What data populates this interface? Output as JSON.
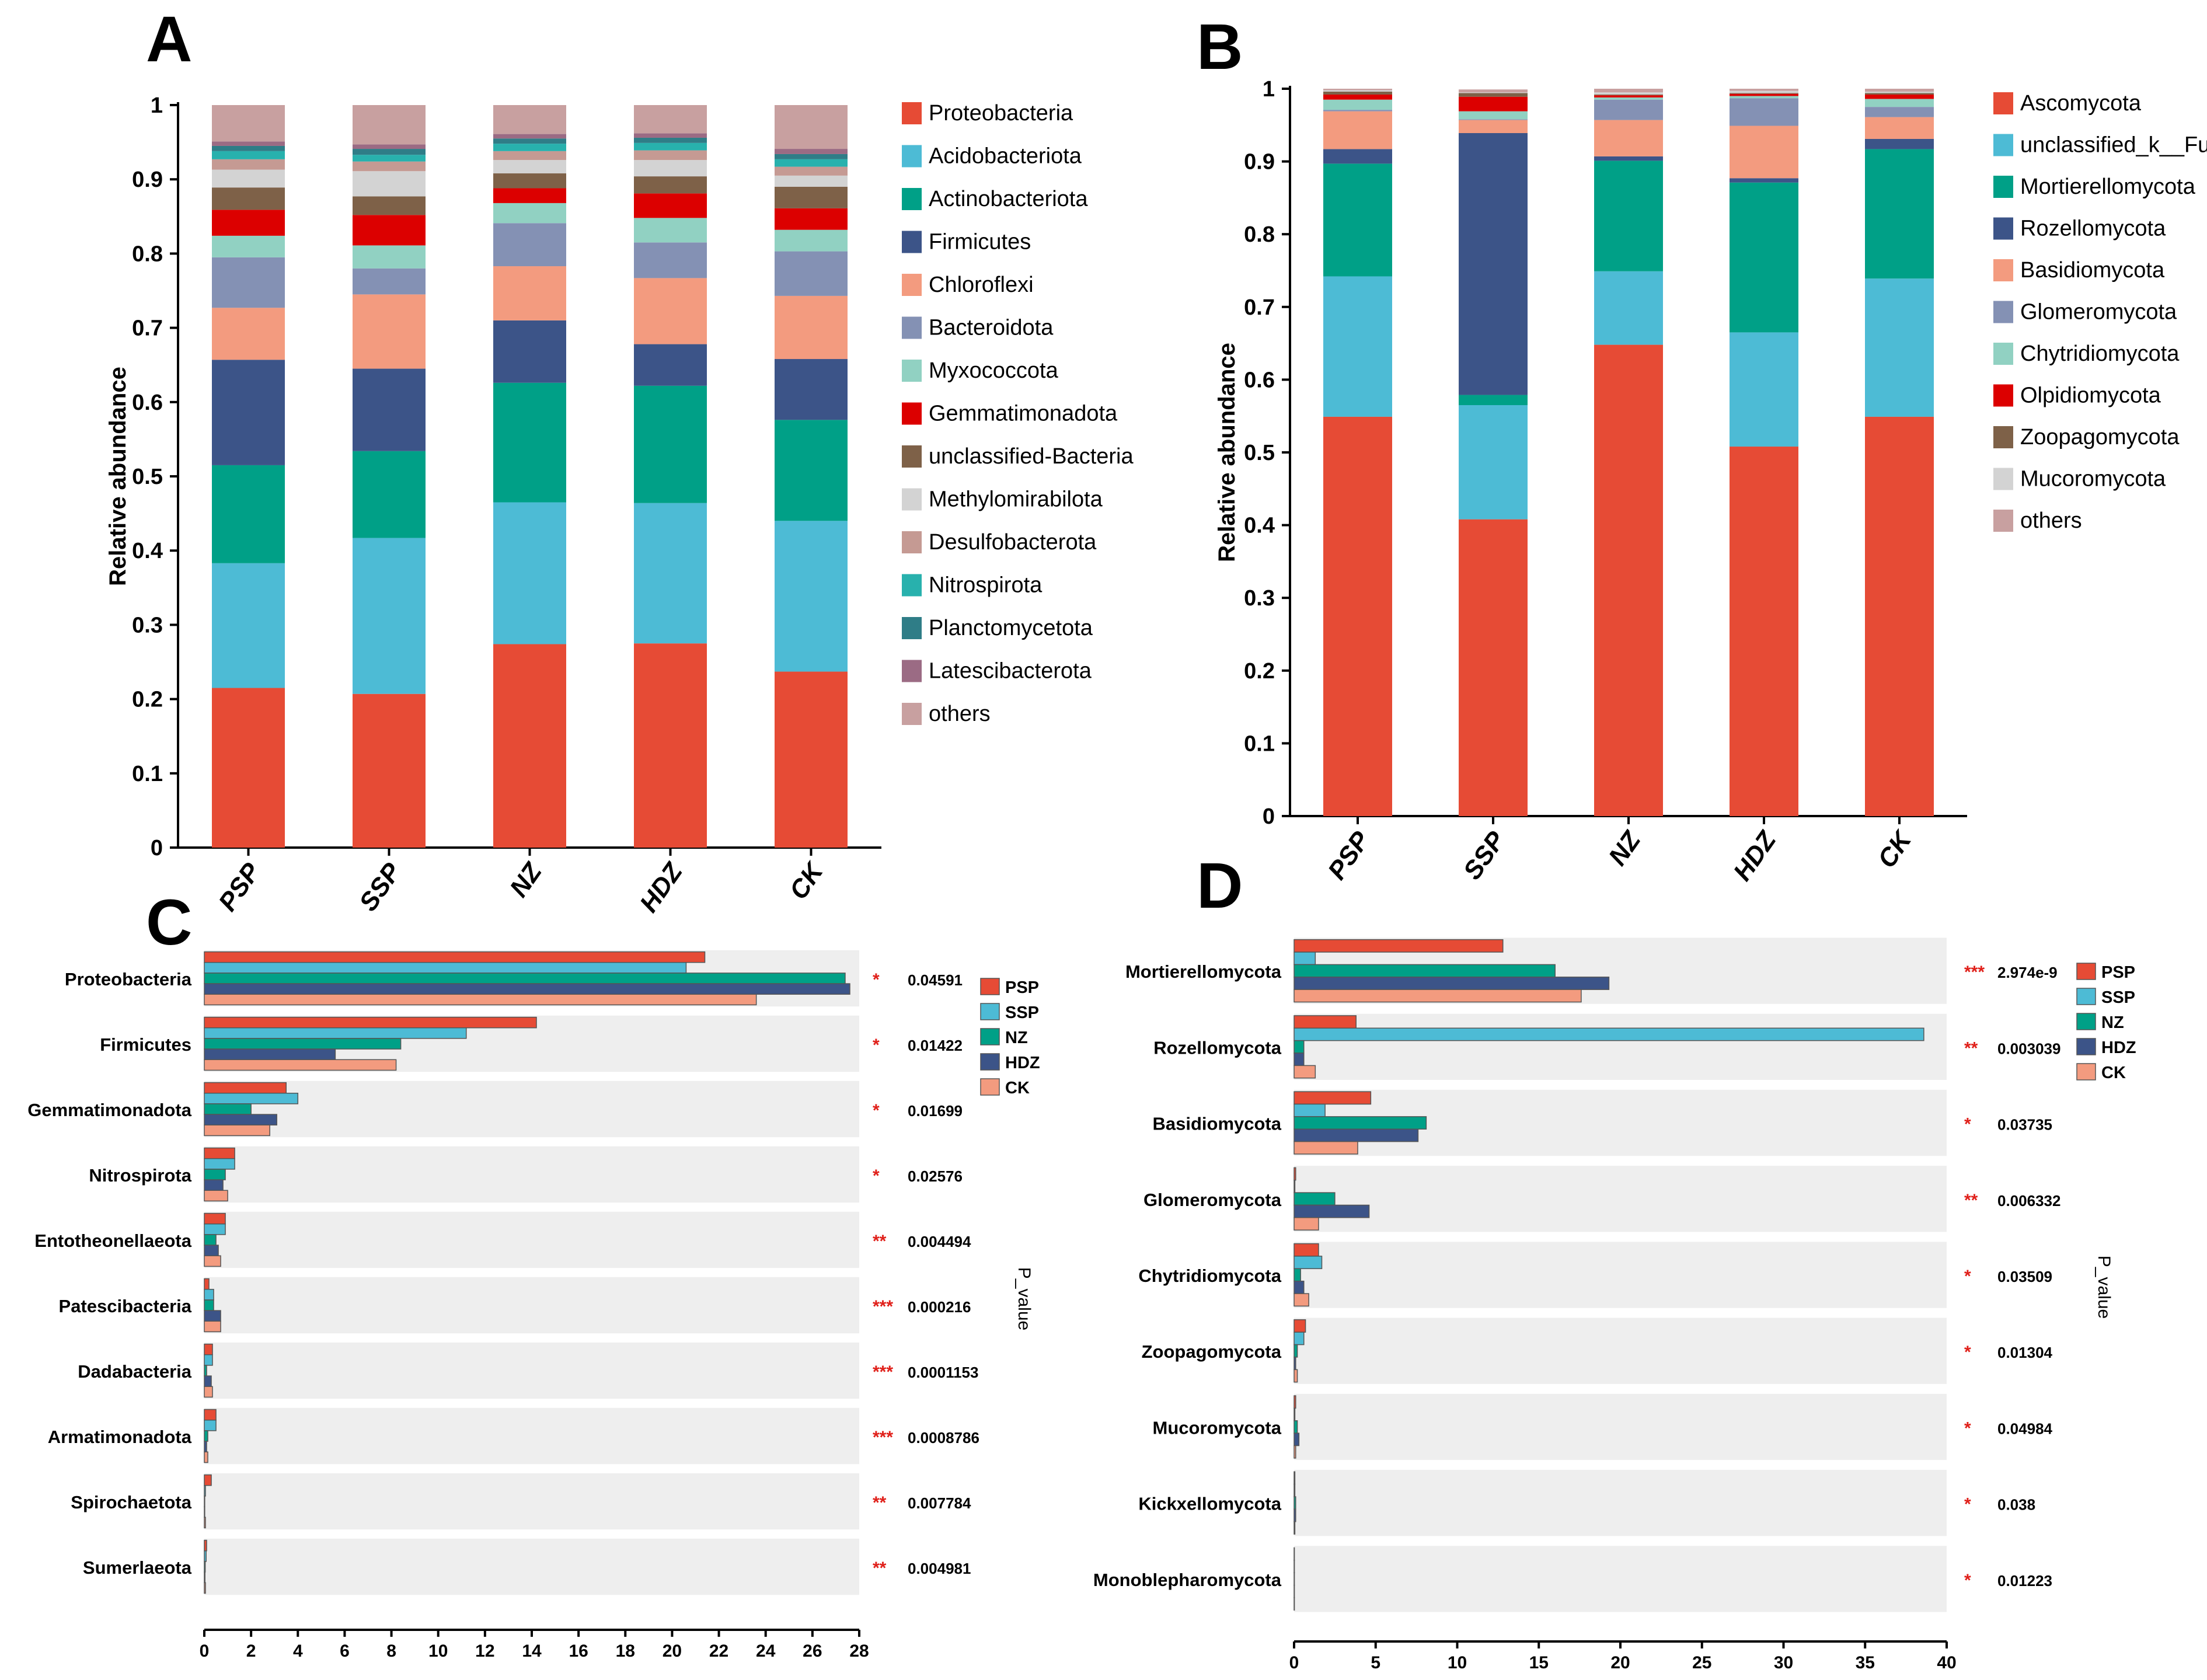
{
  "colors": {
    "red": "#e64b35",
    "lightblue": "#4dbbd5",
    "teal": "#00a087",
    "navy": "#3c5488",
    "salmon": "#f39b7f",
    "gray_blue": "#8491b4",
    "mint": "#91d1c2",
    "bright_red": "#dc0000",
    "brown": "#7e6148",
    "light_gray": "#d3d3d3",
    "rose": "#c59a93",
    "cyan": "#28b1ad",
    "dark_teal": "#2f7d87",
    "mauve": "#9b6b84",
    "pink": "#c8a0a0",
    "panel_bg": "#eeeeee",
    "sig_red": "#e0201a"
  },
  "chart_data": [
    {
      "id": "A",
      "panel_label": "A",
      "type": "bar",
      "stacked": true,
      "ylabel": "Relative abundance",
      "ylim": [
        0,
        1
      ],
      "yticks": [
        "0",
        "0.1",
        "0.2",
        "0.3",
        "0.4",
        "0.5",
        "0.6",
        "0.7",
        "0.8",
        "0.9",
        "1"
      ],
      "categories": [
        "PSP",
        "SSP",
        "NZ",
        "HDZ",
        "CK"
      ],
      "series": [
        {
          "name": "Proteobacteria",
          "color": "#e64b35",
          "values": [
            0.215,
            0.207,
            0.274,
            0.275,
            0.237
          ]
        },
        {
          "name": "Acidobacteriota",
          "color": "#4dbbd5",
          "values": [
            0.168,
            0.21,
            0.191,
            0.189,
            0.203
          ]
        },
        {
          "name": "Actinobacteriota",
          "color": "#00a087",
          "values": [
            0.132,
            0.117,
            0.161,
            0.158,
            0.136
          ]
        },
        {
          "name": "Firmicutes",
          "color": "#3c5488",
          "values": [
            0.142,
            0.111,
            0.084,
            0.056,
            0.082
          ]
        },
        {
          "name": "Chloroflexi",
          "color": "#f39b7f",
          "values": [
            0.07,
            0.1,
            0.073,
            0.089,
            0.085
          ]
        },
        {
          "name": "Bacteroidota",
          "color": "#8491b4",
          "values": [
            0.068,
            0.035,
            0.058,
            0.048,
            0.06
          ]
        },
        {
          "name": "Myxococcota",
          "color": "#91d1c2",
          "values": [
            0.029,
            0.031,
            0.027,
            0.033,
            0.029
          ]
        },
        {
          "name": "Gemmatimonadota",
          "color": "#dc0000",
          "values": [
            0.035,
            0.041,
            0.02,
            0.033,
            0.029
          ]
        },
        {
          "name": "unclassified-Bacteria",
          "color": "#7e6148",
          "values": [
            0.03,
            0.025,
            0.02,
            0.023,
            0.029
          ]
        },
        {
          "name": "Methylomirabilota",
          "color": "#d3d3d3",
          "values": [
            0.024,
            0.034,
            0.018,
            0.022,
            0.015
          ]
        },
        {
          "name": "Desulfobacterota",
          "color": "#c59a93",
          "values": [
            0.014,
            0.013,
            0.012,
            0.013,
            0.012
          ]
        },
        {
          "name": "Nitrospirota",
          "color": "#28b1ad",
          "values": [
            0.011,
            0.009,
            0.01,
            0.01,
            0.01
          ]
        },
        {
          "name": "Planctomycetota",
          "color": "#2f7d87",
          "values": [
            0.007,
            0.008,
            0.007,
            0.007,
            0.007
          ]
        },
        {
          "name": "Latescibacterota",
          "color": "#9b6b84",
          "values": [
            0.006,
            0.006,
            0.006,
            0.006,
            0.007
          ]
        },
        {
          "name": "others",
          "color": "#c8a0a0",
          "values": [
            0.049,
            0.053,
            0.039,
            0.038,
            0.059
          ]
        }
      ]
    },
    {
      "id": "B",
      "panel_label": "B",
      "type": "bar",
      "stacked": true,
      "ylabel": "Relative abundance",
      "ylim": [
        0,
        1
      ],
      "yticks": [
        "0",
        "0.1",
        "0.2",
        "0.3",
        "0.4",
        "0.5",
        "0.6",
        "0.7",
        "0.8",
        "0.9",
        "1"
      ],
      "categories": [
        "PSP",
        "SSP",
        "NZ",
        "HDZ",
        "CK"
      ],
      "series": [
        {
          "name": "Ascomycota",
          "color": "#e64b35",
          "values": [
            0.549,
            0.408,
            0.648,
            0.508,
            0.549
          ]
        },
        {
          "name": "unclassified_k__Fungi",
          "color": "#4dbbd5",
          "values": [
            0.193,
            0.157,
            0.101,
            0.157,
            0.19
          ]
        },
        {
          "name": "Mortierellomycota",
          "color": "#00a087",
          "values": [
            0.155,
            0.014,
            0.152,
            0.206,
            0.178
          ]
        },
        {
          "name": "Rozellomycota",
          "color": "#3c5488",
          "values": [
            0.02,
            0.36,
            0.006,
            0.006,
            0.014
          ]
        },
        {
          "name": "Basidiomycota",
          "color": "#f39b7f",
          "values": [
            0.052,
            0.018,
            0.05,
            0.072,
            0.03
          ]
        },
        {
          "name": "Glomeromycota",
          "color": "#8491b4",
          "values": [
            0.002,
            0.001,
            0.028,
            0.038,
            0.014
          ]
        },
        {
          "name": "Chytridiomycota",
          "color": "#91d1c2",
          "values": [
            0.014,
            0.011,
            0.003,
            0.003,
            0.011
          ]
        },
        {
          "name": "Olpidiomycota",
          "color": "#dc0000",
          "values": [
            0.007,
            0.02,
            0.003,
            0.003,
            0.006
          ]
        },
        {
          "name": "Zoopagomycota",
          "color": "#7e6148",
          "values": [
            0.004,
            0.005,
            0.001,
            0.001,
            0.002
          ]
        },
        {
          "name": "Mucoromycota",
          "color": "#d3d3d3",
          "values": [
            0.002,
            0.001,
            0.003,
            0.003,
            0.002
          ]
        },
        {
          "name": "others",
          "color": "#c8a0a0",
          "values": [
            0.002,
            0.004,
            0.005,
            0.003,
            0.004
          ]
        }
      ]
    },
    {
      "id": "C",
      "panel_label": "C",
      "type": "bar",
      "orientation": "horizontal",
      "xlim": [
        0,
        28
      ],
      "xticks": [
        "0",
        "2",
        "4",
        "6",
        "8",
        "10",
        "12",
        "14",
        "16",
        "18",
        "20",
        "22",
        "24",
        "26",
        "28"
      ],
      "side_label": "P_value",
      "categories": [
        "Proteobacteria",
        "Firmicutes",
        "Gemmatimonadota",
        "Nitrospirota",
        "Entotheonellaeota",
        "Patescibacteria",
        "Dadabacteria",
        "Armatimonadota",
        "Spirochaetota",
        "Sumerlaeota"
      ],
      "significance": [
        "*",
        "*",
        "*",
        "*",
        "**",
        "***",
        "***",
        "***",
        "**",
        "**"
      ],
      "p_values": [
        "0.04591",
        "0.01422",
        "0.01699",
        "0.02576",
        "0.004494",
        "0.000216",
        "0.0001153",
        "0.0008786",
        "0.007784",
        "0.004981"
      ],
      "series": [
        {
          "name": "PSP",
          "color": "#e64b35",
          "values": [
            21.4,
            14.2,
            3.5,
            1.3,
            0.9,
            0.2,
            0.35,
            0.5,
            0.3,
            0.1
          ]
        },
        {
          "name": "SSP",
          "color": "#4dbbd5",
          "values": [
            20.6,
            11.2,
            4.0,
            1.3,
            0.9,
            0.4,
            0.35,
            0.5,
            0.05,
            0.08
          ]
        },
        {
          "name": "NZ",
          "color": "#00a087",
          "values": [
            27.4,
            8.4,
            2.0,
            0.9,
            0.5,
            0.4,
            0.1,
            0.15,
            0.02,
            0.04
          ]
        },
        {
          "name": "HDZ",
          "color": "#3c5488",
          "values": [
            27.6,
            5.6,
            3.1,
            0.8,
            0.6,
            0.7,
            0.3,
            0.1,
            0.02,
            0.03
          ]
        },
        {
          "name": "CK",
          "color": "#f39b7f",
          "values": [
            23.6,
            8.2,
            2.8,
            1.0,
            0.7,
            0.7,
            0.35,
            0.15,
            0.05,
            0.05
          ]
        }
      ]
    },
    {
      "id": "D",
      "panel_label": "D",
      "type": "bar",
      "orientation": "horizontal",
      "xlim": [
        0,
        40
      ],
      "xticks": [
        "0",
        "5",
        "10",
        "15",
        "20",
        "25",
        "30",
        "35",
        "40"
      ],
      "side_label": "P_value",
      "categories": [
        "Mortierellomycota",
        "Rozellomycota",
        "Basidiomycota",
        "Glomeromycota",
        "Chytridiomycota",
        "Zoopagomycota",
        "Mucoromycota",
        "Kickxellomycota",
        "Monoblepharomycota"
      ],
      "significance": [
        "***",
        "**",
        "*",
        "**",
        "*",
        "*",
        "*",
        "*",
        "*"
      ],
      "p_values": [
        "2.974e-9",
        "0.003039",
        "0.03735",
        "0.006332",
        "0.03509",
        "0.01304",
        "0.04984",
        "0.038",
        "0.01223"
      ],
      "series": [
        {
          "name": "PSP",
          "color": "#e64b35",
          "values": [
            12.8,
            3.8,
            4.7,
            0.1,
            1.5,
            0.7,
            0.1,
            0.05,
            0.02
          ]
        },
        {
          "name": "SSP",
          "color": "#4dbbd5",
          "values": [
            1.3,
            38.6,
            1.9,
            0.05,
            1.7,
            0.6,
            0.05,
            0.05,
            0.02
          ]
        },
        {
          "name": "NZ",
          "color": "#00a087",
          "values": [
            16.0,
            0.6,
            8.1,
            2.5,
            0.4,
            0.2,
            0.2,
            0.1,
            0.02
          ]
        },
        {
          "name": "HDZ",
          "color": "#3c5488",
          "values": [
            19.3,
            0.6,
            7.6,
            4.6,
            0.6,
            0.1,
            0.3,
            0.1,
            0.02
          ]
        },
        {
          "name": "CK",
          "color": "#f39b7f",
          "values": [
            17.6,
            1.3,
            3.9,
            1.5,
            0.9,
            0.2,
            0.1,
            0.05,
            0.02
          ]
        }
      ]
    }
  ]
}
